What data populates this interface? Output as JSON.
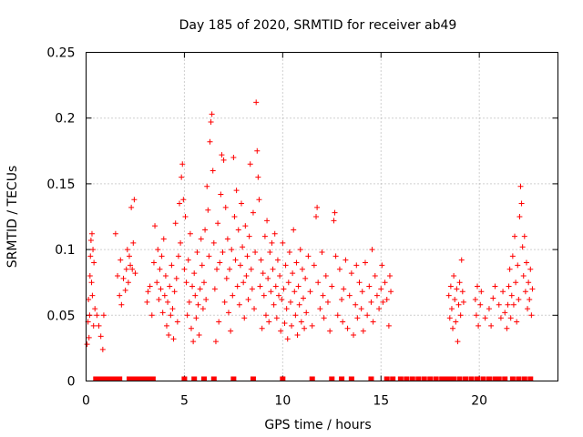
{
  "chart_data": {
    "type": "scatter",
    "title": "Day 185 of 2020, SRMTID for receiver ab49",
    "xlabel": "GPS time / hours",
    "ylabel": "SRMTID / TECUs",
    "xlim": [
      0,
      24
    ],
    "ylim": [
      0,
      0.25
    ],
    "x_ticks": [
      0,
      5,
      10,
      15,
      20
    ],
    "y_ticks": [
      0,
      0.05,
      0.1,
      0.15,
      0.2,
      0.25
    ],
    "x_tick_labels": [
      "0",
      "5",
      "10",
      "15",
      "20"
    ],
    "y_tick_labels": [
      "0",
      "0.05",
      "0.1",
      "0.15",
      "0.2",
      "0.25"
    ],
    "grid": true,
    "marker": "+",
    "color": "#ff0000",
    "series": [
      {
        "name": "SRMTID",
        "points": [
          [
            0.05,
            0.028
          ],
          [
            0.1,
            0.045
          ],
          [
            0.12,
            0.062
          ],
          [
            0.15,
            0.033
          ],
          [
            0.18,
            0.05
          ],
          [
            0.2,
            0.08
          ],
          [
            0.22,
            0.095
          ],
          [
            0.25,
            0.107
          ],
          [
            0.28,
            0.075
          ],
          [
            0.3,
            0.112
          ],
          [
            0.32,
            0.065
          ],
          [
            0.35,
            0.1
          ],
          [
            0.38,
            0.042
          ],
          [
            0.4,
            0.09
          ],
          [
            0.45,
            0.055
          ],
          [
            0.55,
            0.05
          ],
          [
            0.65,
            0.042
          ],
          [
            0.75,
            0.034
          ],
          [
            0.85,
            0.024
          ],
          [
            0.9,
            0.05
          ],
          [
            1.5,
            0.112
          ],
          [
            1.6,
            0.08
          ],
          [
            1.7,
            0.065
          ],
          [
            1.75,
            0.092
          ],
          [
            1.8,
            0.058
          ],
          [
            1.9,
            0.078
          ],
          [
            2.0,
            0.069
          ],
          [
            2.05,
            0.085
          ],
          [
            2.1,
            0.1
          ],
          [
            2.15,
            0.075
          ],
          [
            2.2,
            0.095
          ],
          [
            2.25,
            0.088
          ],
          [
            2.3,
            0.132
          ],
          [
            2.35,
            0.085
          ],
          [
            2.4,
            0.105
          ],
          [
            2.45,
            0.138
          ],
          [
            2.5,
            0.082
          ],
          [
            3.1,
            0.06
          ],
          [
            3.15,
            0.068
          ],
          [
            3.25,
            0.072
          ],
          [
            3.35,
            0.05
          ],
          [
            3.45,
            0.09
          ],
          [
            3.5,
            0.118
          ],
          [
            3.6,
            0.075
          ],
          [
            3.65,
            0.1
          ],
          [
            3.7,
            0.062
          ],
          [
            3.75,
            0.085
          ],
          [
            3.8,
            0.07
          ],
          [
            3.85,
            0.095
          ],
          [
            3.9,
            0.052
          ],
          [
            3.95,
            0.108
          ],
          [
            4.0,
            0.065
          ],
          [
            4.05,
            0.08
          ],
          [
            4.1,
            0.042
          ],
          [
            4.15,
            0.06
          ],
          [
            4.2,
            0.035
          ],
          [
            4.25,
            0.072
          ],
          [
            4.3,
            0.05
          ],
          [
            4.35,
            0.088
          ],
          [
            4.4,
            0.055
          ],
          [
            4.45,
            0.032
          ],
          [
            4.5,
            0.068
          ],
          [
            4.55,
            0.12
          ],
          [
            4.6,
            0.078
          ],
          [
            4.65,
            0.045
          ],
          [
            4.7,
            0.095
          ],
          [
            4.75,
            0.135
          ],
          [
            4.8,
            0.105
          ],
          [
            4.85,
            0.155
          ],
          [
            4.9,
            0.165
          ],
          [
            4.95,
            0.138
          ],
          [
            5.0,
            0.085
          ],
          [
            5.05,
            0.125
          ],
          [
            5.1,
            0.075
          ],
          [
            5.15,
            0.05
          ],
          [
            5.2,
            0.092
          ],
          [
            5.25,
            0.06
          ],
          [
            5.3,
            0.112
          ],
          [
            5.35,
            0.04
          ],
          [
            5.4,
            0.072
          ],
          [
            5.45,
            0.03
          ],
          [
            5.5,
            0.082
          ],
          [
            5.55,
            0.065
          ],
          [
            5.6,
            0.048
          ],
          [
            5.65,
            0.098
          ],
          [
            5.7,
            0.058
          ],
          [
            5.75,
            0.035
          ],
          [
            5.8,
            0.07
          ],
          [
            5.85,
            0.108
          ],
          [
            5.9,
            0.088
          ],
          [
            5.95,
            0.055
          ],
          [
            6.0,
            0.075
          ],
          [
            6.05,
            0.115
          ],
          [
            6.1,
            0.062
          ],
          [
            6.15,
            0.148
          ],
          [
            6.2,
            0.13
          ],
          [
            6.25,
            0.095
          ],
          [
            6.3,
            0.182
          ],
          [
            6.35,
            0.197
          ],
          [
            6.4,
            0.203
          ],
          [
            6.45,
            0.16
          ],
          [
            6.5,
            0.105
          ],
          [
            6.55,
            0.07
          ],
          [
            6.6,
            0.03
          ],
          [
            6.65,
            0.085
          ],
          [
            6.7,
            0.12
          ],
          [
            6.75,
            0.045
          ],
          [
            6.8,
            0.09
          ],
          [
            6.85,
            0.142
          ],
          [
            6.9,
            0.172
          ],
          [
            6.95,
            0.098
          ],
          [
            7.0,
            0.168
          ],
          [
            7.05,
            0.06
          ],
          [
            7.1,
            0.132
          ],
          [
            7.15,
            0.078
          ],
          [
            7.2,
            0.108
          ],
          [
            7.25,
            0.052
          ],
          [
            7.3,
            0.085
          ],
          [
            7.35,
            0.038
          ],
          [
            7.4,
            0.1
          ],
          [
            7.45,
            0.065
          ],
          [
            7.5,
            0.17
          ],
          [
            7.55,
            0.125
          ],
          [
            7.6,
            0.092
          ],
          [
            7.65,
            0.145
          ],
          [
            7.7,
            0.072
          ],
          [
            7.75,
            0.115
          ],
          [
            7.8,
            0.058
          ],
          [
            7.85,
            0.088
          ],
          [
            7.9,
            0.135
          ],
          [
            7.95,
            0.102
          ],
          [
            8.0,
            0.075
          ],
          [
            8.05,
            0.048
          ],
          [
            8.1,
            0.118
          ],
          [
            8.15,
            0.08
          ],
          [
            8.2,
            0.095
          ],
          [
            8.25,
            0.062
          ],
          [
            8.3,
            0.11
          ],
          [
            8.35,
            0.165
          ],
          [
            8.4,
            0.085
          ],
          [
            8.45,
            0.07
          ],
          [
            8.5,
            0.128
          ],
          [
            8.55,
            0.055
          ],
          [
            8.6,
            0.098
          ],
          [
            8.65,
            0.212
          ],
          [
            8.7,
            0.175
          ],
          [
            8.75,
            0.155
          ],
          [
            8.8,
            0.138
          ],
          [
            8.85,
            0.072
          ],
          [
            8.9,
            0.092
          ],
          [
            8.95,
            0.04
          ],
          [
            9.0,
            0.082
          ],
          [
            9.05,
            0.065
          ],
          [
            9.1,
            0.11
          ],
          [
            9.15,
            0.05
          ],
          [
            9.2,
            0.122
          ],
          [
            9.25,
            0.078
          ],
          [
            9.3,
            0.045
          ],
          [
            9.35,
            0.098
          ],
          [
            9.4,
            0.068
          ],
          [
            9.45,
            0.105
          ],
          [
            9.5,
            0.085
          ],
          [
            9.55,
            0.058
          ],
          [
            9.6,
            0.112
          ],
          [
            9.65,
            0.072
          ],
          [
            9.7,
            0.048
          ],
          [
            9.75,
            0.092
          ],
          [
            9.8,
            0.065
          ],
          [
            9.85,
            0.08
          ],
          [
            9.9,
            0.038
          ],
          [
            9.95,
            0.062
          ],
          [
            10.0,
            0.105
          ],
          [
            10.05,
            0.07
          ],
          [
            10.1,
            0.044
          ],
          [
            10.15,
            0.088
          ],
          [
            10.2,
            0.055
          ],
          [
            10.25,
            0.032
          ],
          [
            10.3,
            0.075
          ],
          [
            10.35,
            0.098
          ],
          [
            10.4,
            0.06
          ],
          [
            10.45,
            0.042
          ],
          [
            10.5,
            0.082
          ],
          [
            10.55,
            0.115
          ],
          [
            10.6,
            0.068
          ],
          [
            10.65,
            0.05
          ],
          [
            10.7,
            0.09
          ],
          [
            10.75,
            0.035
          ],
          [
            10.8,
            0.072
          ],
          [
            10.85,
            0.058
          ],
          [
            10.9,
            0.1
          ],
          [
            10.95,
            0.045
          ],
          [
            11.0,
            0.085
          ],
          [
            11.05,
            0.063
          ],
          [
            11.1,
            0.04
          ],
          [
            11.15,
            0.078
          ],
          [
            11.2,
            0.052
          ],
          [
            11.3,
            0.095
          ],
          [
            11.4,
            0.068
          ],
          [
            11.5,
            0.042
          ],
          [
            11.6,
            0.088
          ],
          [
            11.7,
            0.125
          ],
          [
            11.75,
            0.132
          ],
          [
            11.8,
            0.075
          ],
          [
            11.9,
            0.055
          ],
          [
            12.0,
            0.098
          ],
          [
            12.05,
            0.065
          ],
          [
            12.1,
            0.048
          ],
          [
            12.2,
            0.08
          ],
          [
            12.3,
            0.06
          ],
          [
            12.4,
            0.038
          ],
          [
            12.5,
            0.072
          ],
          [
            12.6,
            0.122
          ],
          [
            12.65,
            0.128
          ],
          [
            12.7,
            0.095
          ],
          [
            12.8,
            0.05
          ],
          [
            12.9,
            0.085
          ],
          [
            13.0,
            0.062
          ],
          [
            13.05,
            0.045
          ],
          [
            13.1,
            0.07
          ],
          [
            13.2,
            0.092
          ],
          [
            13.3,
            0.04
          ],
          [
            13.4,
            0.065
          ],
          [
            13.5,
            0.082
          ],
          [
            13.6,
            0.035
          ],
          [
            13.7,
            0.058
          ],
          [
            13.75,
            0.088
          ],
          [
            13.8,
            0.048
          ],
          [
            13.9,
            0.075
          ],
          [
            14.0,
            0.055
          ],
          [
            14.05,
            0.068
          ],
          [
            14.1,
            0.038
          ],
          [
            14.2,
            0.09
          ],
          [
            14.3,
            0.05
          ],
          [
            14.4,
            0.072
          ],
          [
            14.5,
            0.06
          ],
          [
            14.55,
            0.1
          ],
          [
            14.6,
            0.045
          ],
          [
            14.7,
            0.08
          ],
          [
            14.8,
            0.065
          ],
          [
            14.9,
            0.055
          ],
          [
            15.0,
            0.07
          ],
          [
            15.05,
            0.088
          ],
          [
            15.1,
            0.06
          ],
          [
            15.2,
            0.075
          ],
          [
            15.3,
            0.062
          ],
          [
            15.4,
            0.042
          ],
          [
            15.45,
            0.08
          ],
          [
            15.5,
            0.068
          ],
          [
            18.45,
            0.065
          ],
          [
            18.5,
            0.048
          ],
          [
            18.55,
            0.072
          ],
          [
            18.6,
            0.055
          ],
          [
            18.65,
            0.04
          ],
          [
            18.7,
            0.08
          ],
          [
            18.75,
            0.062
          ],
          [
            18.8,
            0.045
          ],
          [
            18.85,
            0.07
          ],
          [
            18.9,
            0.03
          ],
          [
            18.95,
            0.058
          ],
          [
            19.0,
            0.075
          ],
          [
            19.05,
            0.05
          ],
          [
            19.1,
            0.092
          ],
          [
            19.15,
            0.068
          ],
          [
            19.2,
            0.06
          ],
          [
            19.8,
            0.062
          ],
          [
            19.85,
            0.05
          ],
          [
            19.9,
            0.072
          ],
          [
            19.95,
            0.042
          ],
          [
            20.05,
            0.058
          ],
          [
            20.1,
            0.068
          ],
          [
            20.3,
            0.048
          ],
          [
            20.5,
            0.055
          ],
          [
            20.6,
            0.042
          ],
          [
            20.7,
            0.063
          ],
          [
            20.8,
            0.072
          ],
          [
            21.0,
            0.058
          ],
          [
            21.1,
            0.048
          ],
          [
            21.2,
            0.068
          ],
          [
            21.3,
            0.052
          ],
          [
            21.4,
            0.04
          ],
          [
            21.45,
            0.058
          ],
          [
            21.5,
            0.072
          ],
          [
            21.55,
            0.085
          ],
          [
            21.6,
            0.048
          ],
          [
            21.65,
            0.065
          ],
          [
            21.7,
            0.095
          ],
          [
            21.75,
            0.058
          ],
          [
            21.8,
            0.11
          ],
          [
            21.85,
            0.075
          ],
          [
            21.9,
            0.045
          ],
          [
            21.95,
            0.088
          ],
          [
            22.0,
            0.062
          ],
          [
            22.05,
            0.125
          ],
          [
            22.1,
            0.148
          ],
          [
            22.15,
            0.135
          ],
          [
            22.2,
            0.102
          ],
          [
            22.25,
            0.08
          ],
          [
            22.3,
            0.11
          ],
          [
            22.35,
            0.068
          ],
          [
            22.4,
            0.09
          ],
          [
            22.45,
            0.055
          ],
          [
            22.5,
            0.075
          ],
          [
            22.55,
            0.062
          ],
          [
            22.6,
            0.085
          ],
          [
            22.65,
            0.05
          ],
          [
            22.7,
            0.07
          ]
        ]
      }
    ],
    "zero_flags_x": [
      0.5,
      0.7,
      0.9,
      1.1,
      1.3,
      1.5,
      1.7,
      2.2,
      2.4,
      2.6,
      2.8,
      3.0,
      3.2,
      3.4,
      5.0,
      5.5,
      6.0,
      6.5,
      7.5,
      8.5,
      10.0,
      11.5,
      12.5,
      13.0,
      13.5,
      14.5,
      15.3,
      15.6,
      16.0,
      16.3,
      16.6,
      16.9,
      17.2,
      17.5,
      17.8,
      18.1,
      18.3,
      18.5,
      18.7,
      19.0,
      19.3,
      19.6,
      19.9,
      20.2,
      20.5,
      20.8,
      21.0,
      21.3,
      21.7,
      22.0,
      22.3,
      22.6
    ]
  }
}
